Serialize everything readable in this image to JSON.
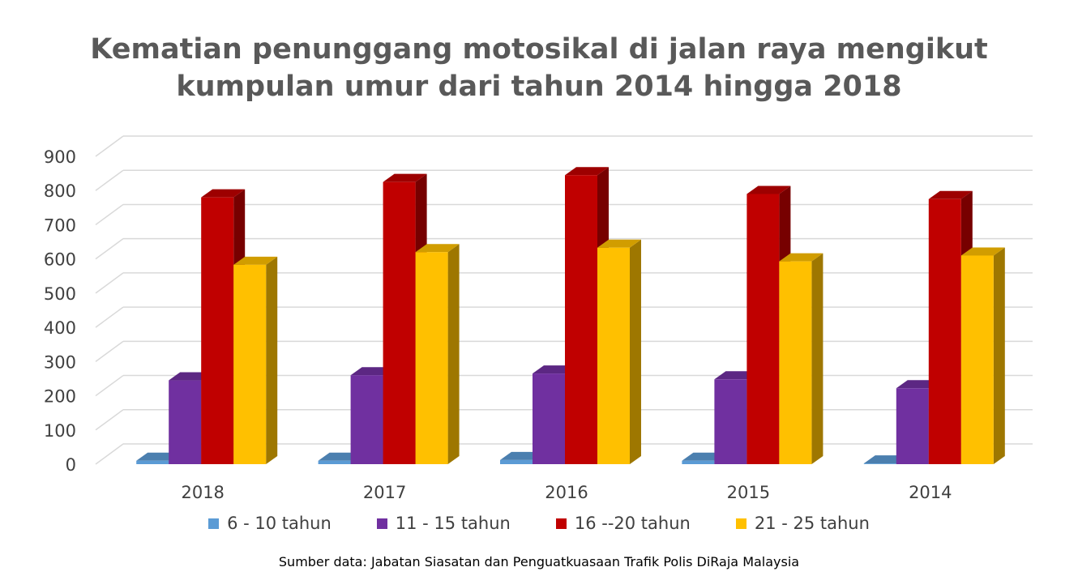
{
  "chart_data": {
    "type": "bar",
    "title_lines": [
      "Kematian penunggang motosikal di jalan raya mengikut",
      "kumpulan umur dari tahun 2014 hingga 2018"
    ],
    "categories": [
      "2018",
      "2017",
      "2016",
      "2015",
      "2014"
    ],
    "series": [
      {
        "name": "6 - 10 tahun",
        "color": "#5B9BD5",
        "values": [
          10,
          10,
          12,
          10,
          2
        ]
      },
      {
        "name": "11 - 15 tahun",
        "color": "#7030A0",
        "values": [
          245,
          260,
          265,
          248,
          222
        ]
      },
      {
        "name": "16 --20 tahun",
        "color": "#C00000",
        "values": [
          780,
          825,
          845,
          790,
          775
        ]
      },
      {
        "name": "21 - 25 tahun",
        "color": "#FFC000",
        "values": [
          583,
          620,
          633,
          593,
          610
        ]
      }
    ],
    "yticks": [
      "0",
      "100",
      "200",
      "300",
      "400",
      "500",
      "600",
      "700",
      "800",
      "900"
    ],
    "ylim": [
      0,
      900
    ],
    "grid": true,
    "legend_position": "bottom",
    "style": "3d-clustered-column"
  },
  "source_note": "Sumber data: Jabatan Siasatan dan Penguatkuasaan Trafik Polis DiRaja Malaysia"
}
